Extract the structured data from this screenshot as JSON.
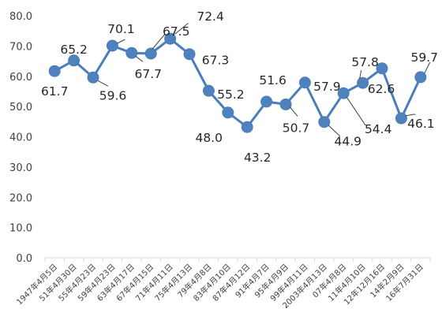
{
  "chart_data": {
    "type": "line",
    "title": "",
    "xlabel": "",
    "ylabel": "",
    "ylim": [
      0,
      80
    ],
    "yticks": [
      "0.0",
      "10.0",
      "20.0",
      "30.0",
      "40.0",
      "50.0",
      "60.0",
      "70.0",
      "80.0"
    ],
    "grid": false,
    "legend": "none",
    "colors": {
      "line": "#4a7ebb",
      "marker": "#4f81bd",
      "axis": "#d9d9d9",
      "leader": "#404040"
    },
    "categories": [
      "1947年4月5日",
      "51年4月30日",
      "55年4月23日",
      "59年4月23日",
      "63年4月17日",
      "67年4月15日",
      "71年4月11日",
      "75年4月13日",
      "79年4月8日",
      "83年4月10日",
      "87年4月12日",
      "91年4月7日",
      "95年4月9日",
      "99年4月11日",
      "2003年4月13日",
      "07年4月8日",
      "11年4月10日",
      "12年12月16日",
      "14年2月9日",
      "16年7月31日"
    ],
    "series": [
      {
        "values": [
          61.7,
          65.2,
          59.6,
          70.1,
          67.7,
          67.5,
          72.4,
          67.3,
          55.2,
          48.0,
          43.2,
          51.6,
          50.7,
          57.9,
          44.9,
          54.4,
          57.8,
          62.6,
          46.1,
          59.7
        ]
      }
    ],
    "data_labels": [
      "61.7",
      "65.2",
      "59.6",
      "70.1",
      "67.7",
      "67.5",
      "72.4",
      "67.3",
      "55.2",
      "48.0",
      "43.2",
      "51.6",
      "50.7",
      "57.9",
      "44.9",
      "54.4",
      "57.8",
      "62.6",
      "46.1",
      "59.7"
    ]
  }
}
